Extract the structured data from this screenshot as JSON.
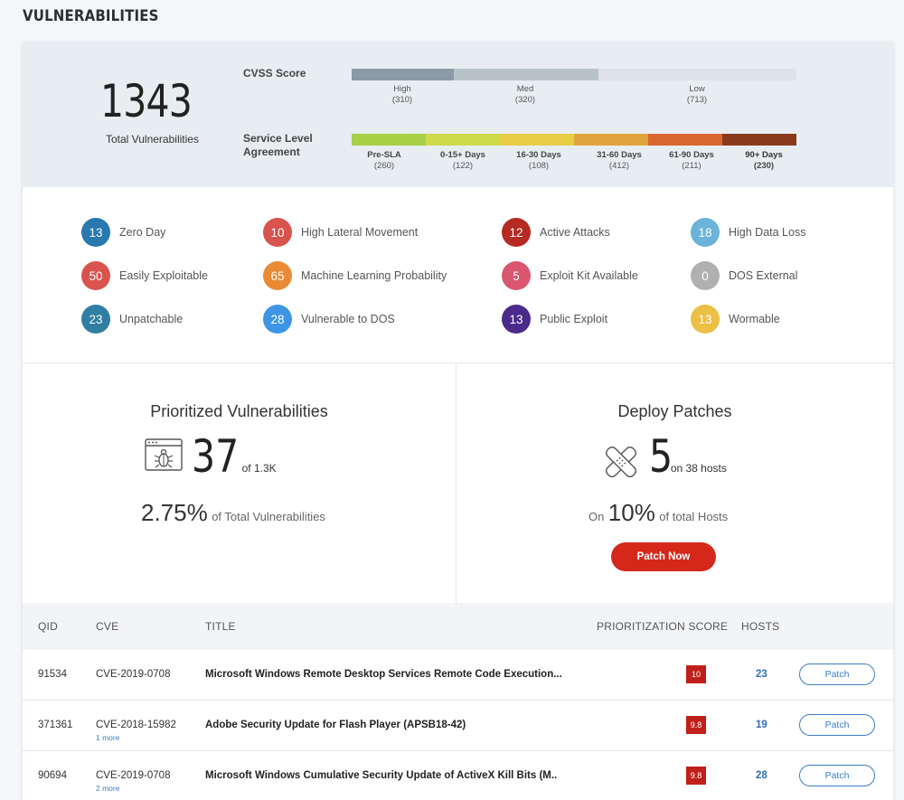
{
  "page_title": "VULNERABILITIES",
  "summary": {
    "total": "1343",
    "total_label": "Total Vulnerabilities",
    "cvss_label": "CVSS Score",
    "sla_label": "Service Level Agreement",
    "cvss": [
      {
        "label": "High",
        "count": "(310)",
        "color": "#8c9aa5",
        "value": 310
      },
      {
        "label": "Med",
        "count": "(320)",
        "color": "#b8c2c9",
        "value": 320
      },
      {
        "label": "Low",
        "count": "(713)",
        "color": "#dde2e6",
        "value": 713
      }
    ],
    "sla": [
      {
        "label": "Pre-SLA",
        "count": "(260)",
        "color": "#a9cf45"
      },
      {
        "label": "0-15+ Days",
        "count": "(122)",
        "color": "#cfda4b"
      },
      {
        "label": "16-30 Days",
        "count": "(108)",
        "color": "#e8cd46"
      },
      {
        "label": "31-60 Days",
        "count": "(412)",
        "color": "#e0a43c"
      },
      {
        "label": "61-90 Days",
        "count": "(211)",
        "color": "#d9672e"
      },
      {
        "label": "90+ Days",
        "count": "(230)",
        "color": "#8a3a1c"
      }
    ]
  },
  "badges": [
    {
      "count": "13",
      "label": "Zero Day",
      "color": "#2a78b0"
    },
    {
      "count": "10",
      "label": "High Lateral Movement",
      "color": "#d9534f"
    },
    {
      "count": "12",
      "label": "Active Attacks",
      "color": "#b52a22"
    },
    {
      "count": "18",
      "label": "High Data Loss",
      "color": "#6bb3d9"
    },
    {
      "count": "50",
      "label": "Easily Exploitable",
      "color": "#d9534f"
    },
    {
      "count": "65",
      "label": "Machine Learning Probability",
      "color": "#e98a35"
    },
    {
      "count": "5",
      "label": "Exploit Kit Available",
      "color": "#d9566e"
    },
    {
      "count": "0",
      "label": "DOS External",
      "color": "#b0b0b0"
    },
    {
      "count": "23",
      "label": "Unpatchable",
      "color": "#2f7fa3"
    },
    {
      "count": "28",
      "label": "Vulnerable to DOS",
      "color": "#3d95e6"
    },
    {
      "count": "13",
      "label": "Public Exploit",
      "color": "#4a2a8a"
    },
    {
      "count": "13",
      "label": "Wormable",
      "color": "#ecbf45"
    }
  ],
  "prioritized": {
    "title": "Prioritized Vulnerabilities",
    "count": "37",
    "of": "of 1.3K",
    "pct": "2.75%",
    "pct_text": "of Total Vulnerabilities"
  },
  "deploy": {
    "title": "Deploy Patches",
    "count": "5",
    "on_hosts": "on 38 hosts",
    "on": "On",
    "pct": "10%",
    "pct_text": "of total Hosts",
    "button": "Patch Now"
  },
  "table": {
    "headers": {
      "qid": "QID",
      "cve": "CVE",
      "title": "TITLE",
      "score": "PRIORITIZATION SCORE",
      "hosts": "HOSTS"
    },
    "rows": [
      {
        "qid": "91534",
        "cve": "CVE-2019-0708",
        "more": "",
        "title": "Microsoft Windows Remote Desktop Services Remote Code Execution...",
        "score": "10",
        "hosts": "23",
        "action": "Patch"
      },
      {
        "qid": "371361",
        "cve": "CVE-2018-15982",
        "more": "1 more",
        "title": "Adobe Security Update for Flash Player (APSB18-42)",
        "score": "9.8",
        "hosts": "19",
        "action": "Patch"
      },
      {
        "qid": "90694",
        "cve": "CVE-2019-0708",
        "more": "2 more",
        "title": "Microsoft Windows Cumulative Security Update of ActiveX Kill Bits (M..",
        "score": "9.8",
        "hosts": "28",
        "action": "Patch"
      }
    ]
  }
}
